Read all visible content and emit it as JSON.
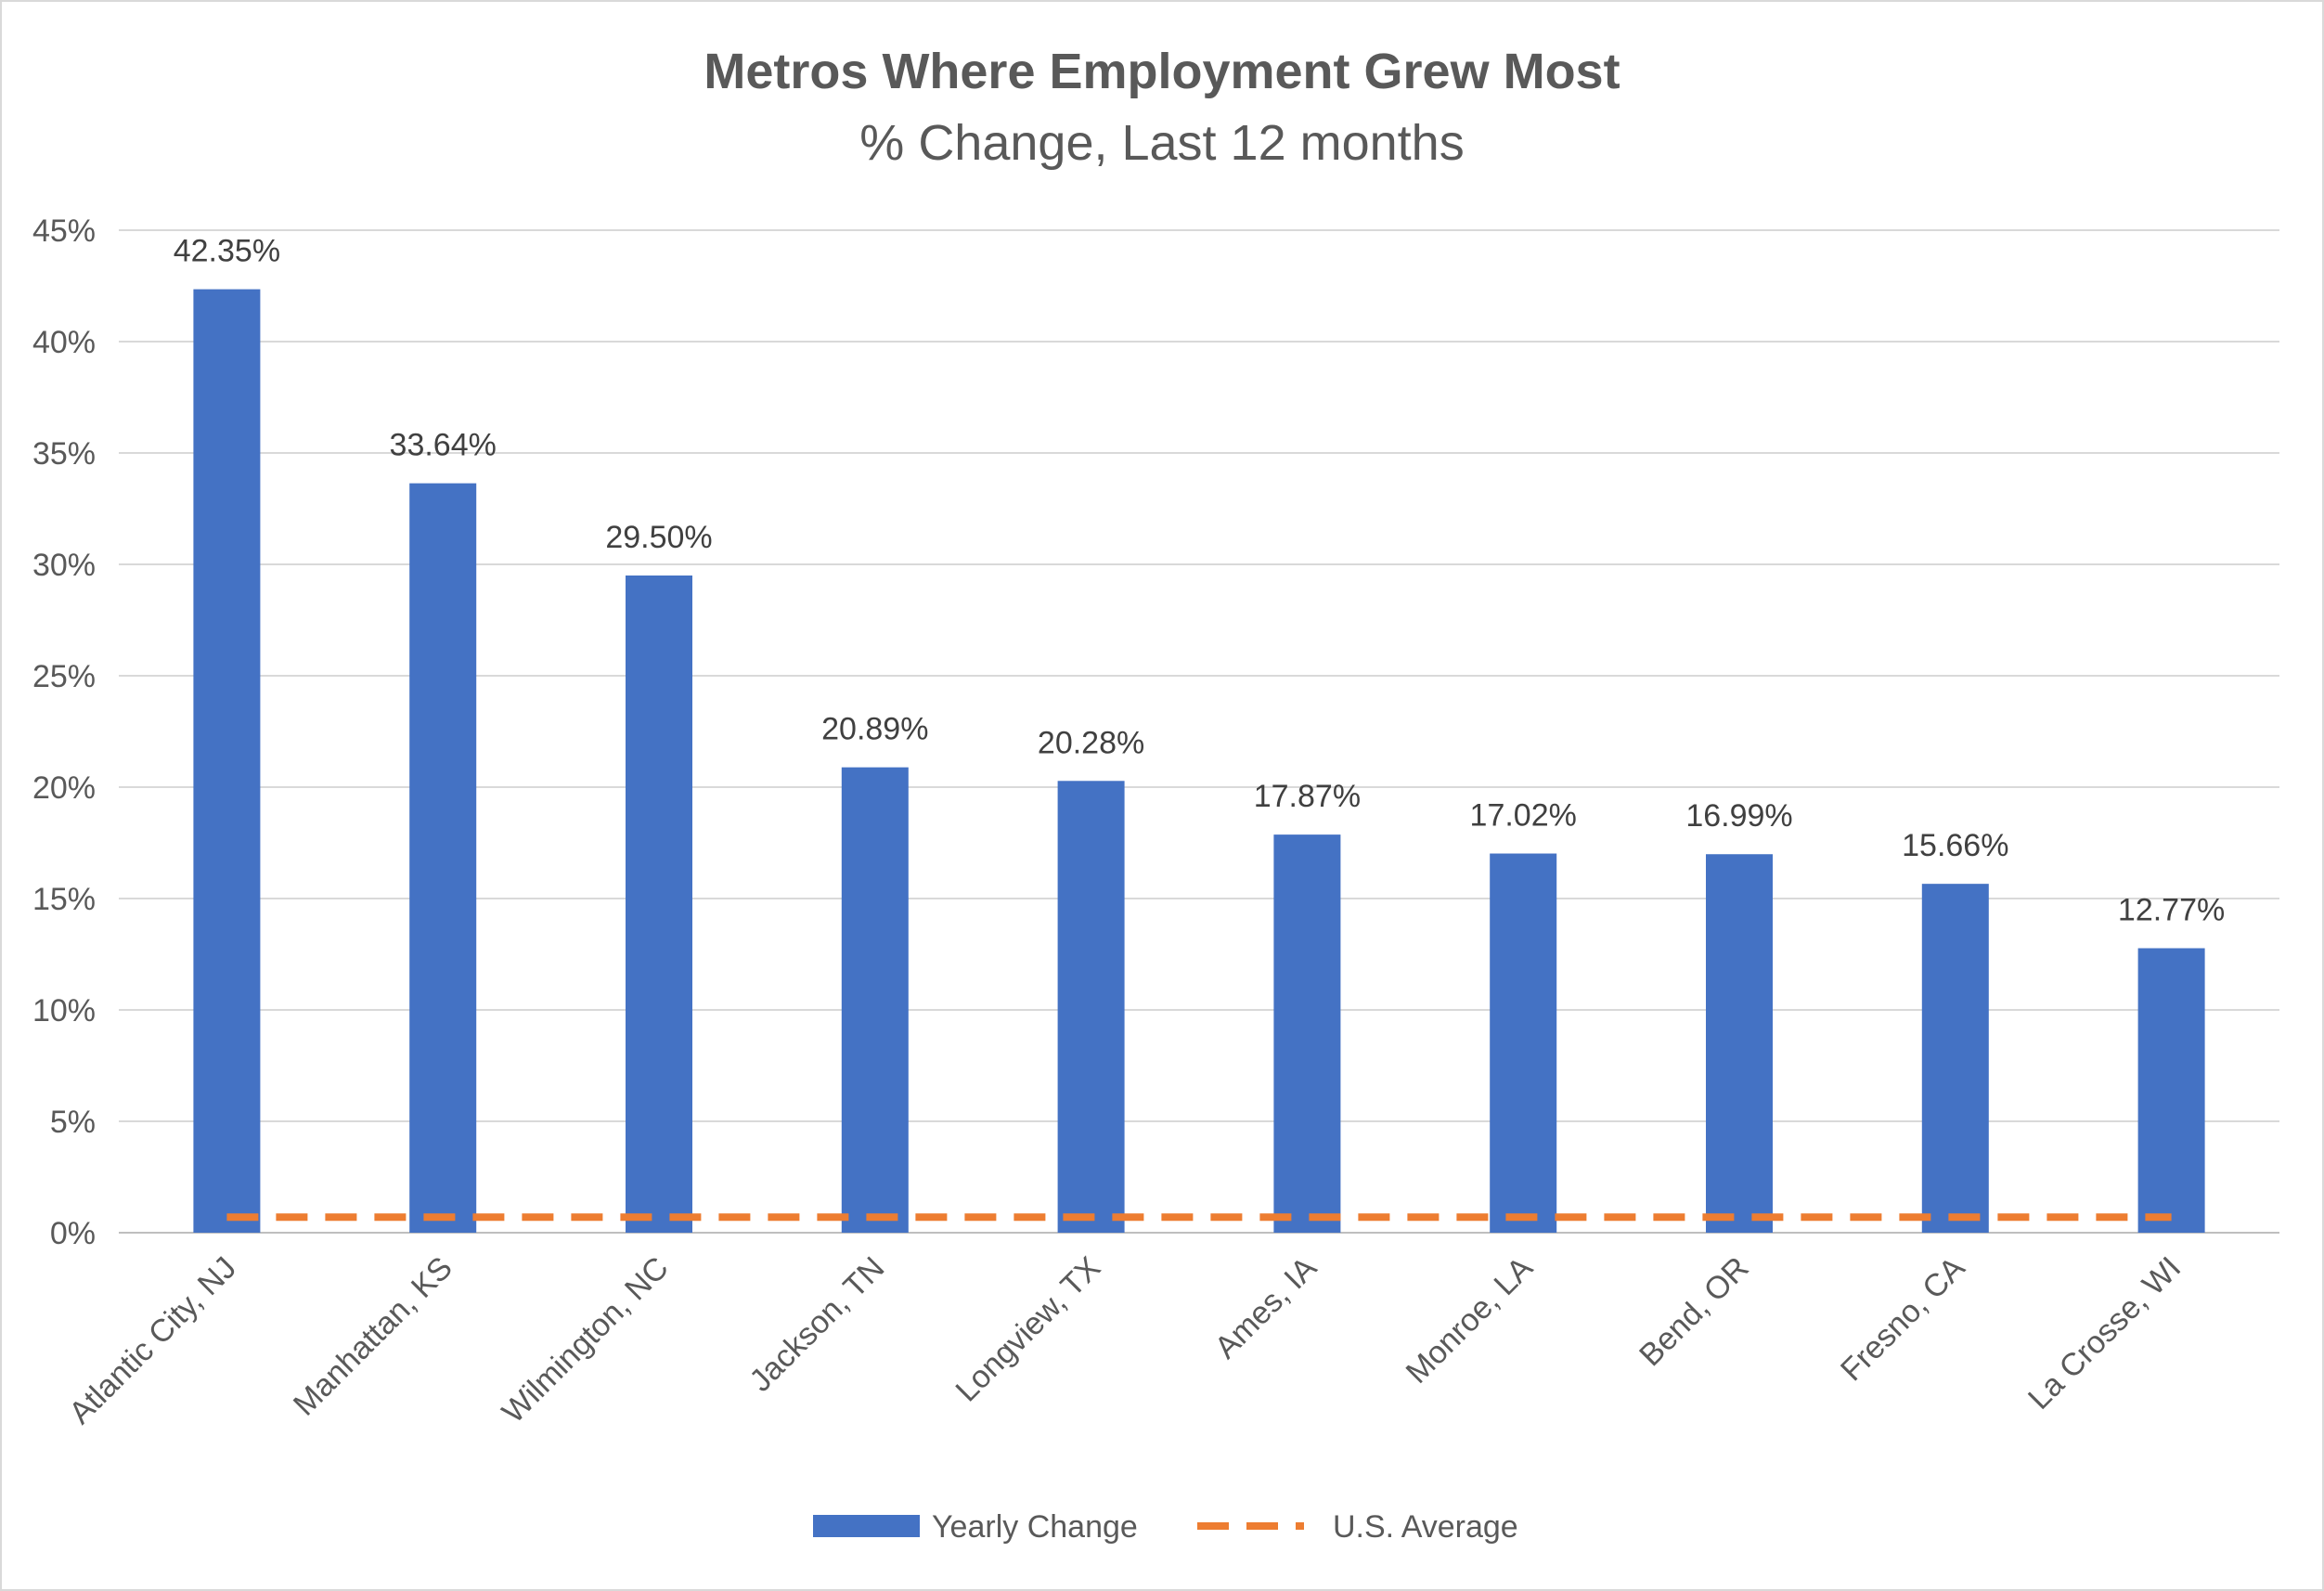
{
  "chart_data": {
    "type": "bar",
    "title": "Metros Where Employment Grew Most",
    "subtitle": "% Change, Last 12 months",
    "categories": [
      "Atlantic City, NJ",
      "Manhattan, KS",
      "Wilmington, NC",
      "Jackson, TN",
      "Longview, TX",
      "Ames, IA",
      "Monroe, LA",
      "Bend, OR",
      "Fresno, CA",
      "La Crosse, WI"
    ],
    "series": [
      {
        "name": "Yearly Change",
        "type": "bar",
        "color": "#4472c4",
        "values": [
          42.35,
          33.64,
          29.5,
          20.89,
          20.28,
          17.87,
          17.02,
          16.99,
          15.66,
          12.77
        ],
        "labels": [
          "42.35%",
          "33.64%",
          "29.50%",
          "20.89%",
          "20.28%",
          "17.87%",
          "17.02%",
          "16.99%",
          "15.66%",
          "12.77%"
        ]
      },
      {
        "name": "U.S. Average",
        "type": "line",
        "style": "dashed",
        "color": "#ed7d31",
        "values": [
          0.7,
          0.7,
          0.7,
          0.7,
          0.7,
          0.7,
          0.7,
          0.7,
          0.7,
          0.7
        ]
      }
    ],
    "ylim": [
      0,
      45
    ],
    "yticks": [
      0,
      5,
      10,
      15,
      20,
      25,
      30,
      35,
      40,
      45
    ],
    "ytick_labels": [
      "0%",
      "5%",
      "10%",
      "15%",
      "20%",
      "25%",
      "30%",
      "35%",
      "40%",
      "45%"
    ],
    "grid": true,
    "legend_position": "bottom"
  }
}
